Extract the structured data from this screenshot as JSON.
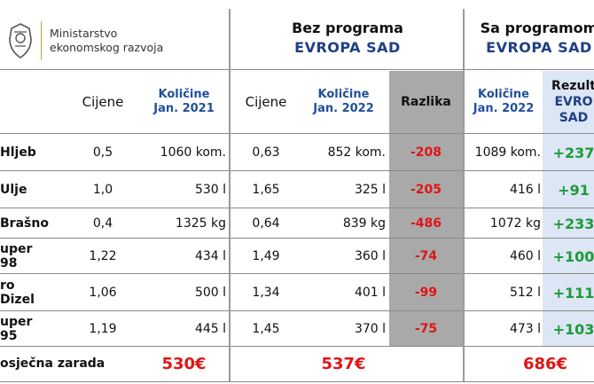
{
  "logo": {
    "line1": "Ministarstvo",
    "line2": "ekonomskog razvoja"
  },
  "headers": {
    "bez_line1": "Bez programa",
    "bez_line2": "EVROPA SAD",
    "sa_line1": "Sa programom",
    "sa_line2": "EVROPA SAD",
    "cijene": "Cijene",
    "kol2021_l1": "Količine",
    "kol2021_l2": "Jan. 2021",
    "cijene2": "Cijene",
    "kol2022_l1": "Količine",
    "kol2022_l2": "Jan. 2022",
    "razlika": "Razlika",
    "kol2022b_l1": "Količine",
    "kol2022b_l2": "Jan. 2022",
    "rez_l1": "Rezult",
    "rez_l2": "EVRO",
    "rez_l3": "SAD"
  },
  "rows": [
    {
      "label": "Hljeb",
      "cijena2021": "0,5",
      "kol2021": "1060 kom.",
      "cijena2022": "0,63",
      "kol2022": "852 kom.",
      "razlika": "-208",
      "kol2022sa": "1089 kom.",
      "rezultat": "+237"
    },
    {
      "label": "Ulje",
      "cijena2021": "1,0",
      "kol2021": "530 l",
      "cijena2022": "1,65",
      "kol2022": "325 l",
      "razlika": "-205",
      "kol2022sa": "416 l",
      "rezultat": "+91"
    },
    {
      "label": "Brašno",
      "cijena2021": "0,4",
      "kol2021": "1325 kg",
      "cijena2022": "0,64",
      "kol2022": "839 kg",
      "razlika": "-486",
      "kol2022sa": "1072 kg",
      "rezultat": "+233"
    },
    {
      "label": "uper 98",
      "cijena2021": "1,22",
      "kol2021": "434 l",
      "cijena2022": "1,49",
      "kol2022": "360 l",
      "razlika": "-74",
      "kol2022sa": "460 l",
      "rezultat": "+100"
    },
    {
      "label": "ro Dizel",
      "cijena2021": "1,06",
      "kol2021": "500 l",
      "cijena2022": "1,34",
      "kol2022": "401 l",
      "razlika": "-99",
      "kol2022sa": "512 l",
      "rezultat": "+111"
    },
    {
      "label": "uper 95",
      "cijena2021": "1,19",
      "kol2021": "445 l",
      "cijena2022": "1,45",
      "kol2022": "370 l",
      "razlika": "-75",
      "kol2022sa": "473 l",
      "rezultat": "+103"
    }
  ],
  "footer": {
    "label": "osječna zarada",
    "total2021": "530€",
    "total2022": "537€",
    "total2022sa": "686€"
  },
  "colors": {
    "red": "#e01515",
    "green": "#1e9a3a",
    "blue": "#1f3f86",
    "grey": "#a9a9a9",
    "lightblue": "#dce6f4"
  }
}
